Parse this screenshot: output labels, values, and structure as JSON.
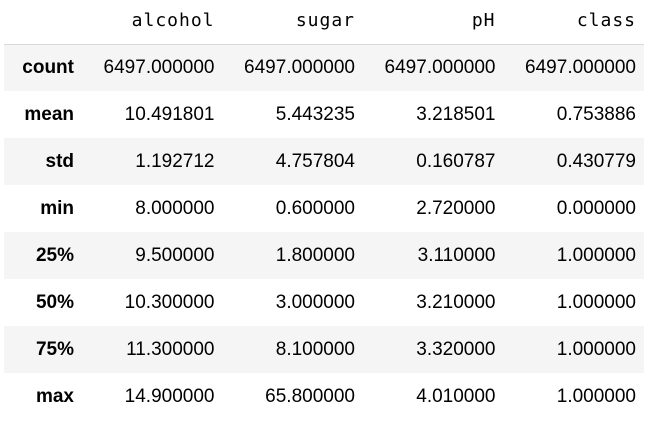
{
  "table": {
    "columns": [
      "",
      "alcohol",
      "sugar",
      "pH",
      "class"
    ],
    "rows": [
      {
        "index": "count",
        "values": [
          "6497.000000",
          "6497.000000",
          "6497.000000",
          "6497.000000"
        ]
      },
      {
        "index": "mean",
        "values": [
          "10.491801",
          "5.443235",
          "3.218501",
          "0.753886"
        ]
      },
      {
        "index": "std",
        "values": [
          "1.192712",
          "4.757804",
          "0.160787",
          "0.430779"
        ]
      },
      {
        "index": "min",
        "values": [
          "8.000000",
          "0.600000",
          "2.720000",
          "0.000000"
        ]
      },
      {
        "index": "25%",
        "values": [
          "9.500000",
          "1.800000",
          "3.110000",
          "1.000000"
        ]
      },
      {
        "index": "50%",
        "values": [
          "10.300000",
          "3.000000",
          "3.210000",
          "1.000000"
        ]
      },
      {
        "index": "75%",
        "values": [
          "11.300000",
          "8.100000",
          "3.320000",
          "1.000000"
        ]
      },
      {
        "index": "max",
        "values": [
          "14.900000",
          "65.800000",
          "4.010000",
          "1.000000"
        ]
      }
    ]
  },
  "colors": {
    "stripe": "#f5f5f5",
    "header_border": "#d9d9d9",
    "text": "#000000"
  }
}
